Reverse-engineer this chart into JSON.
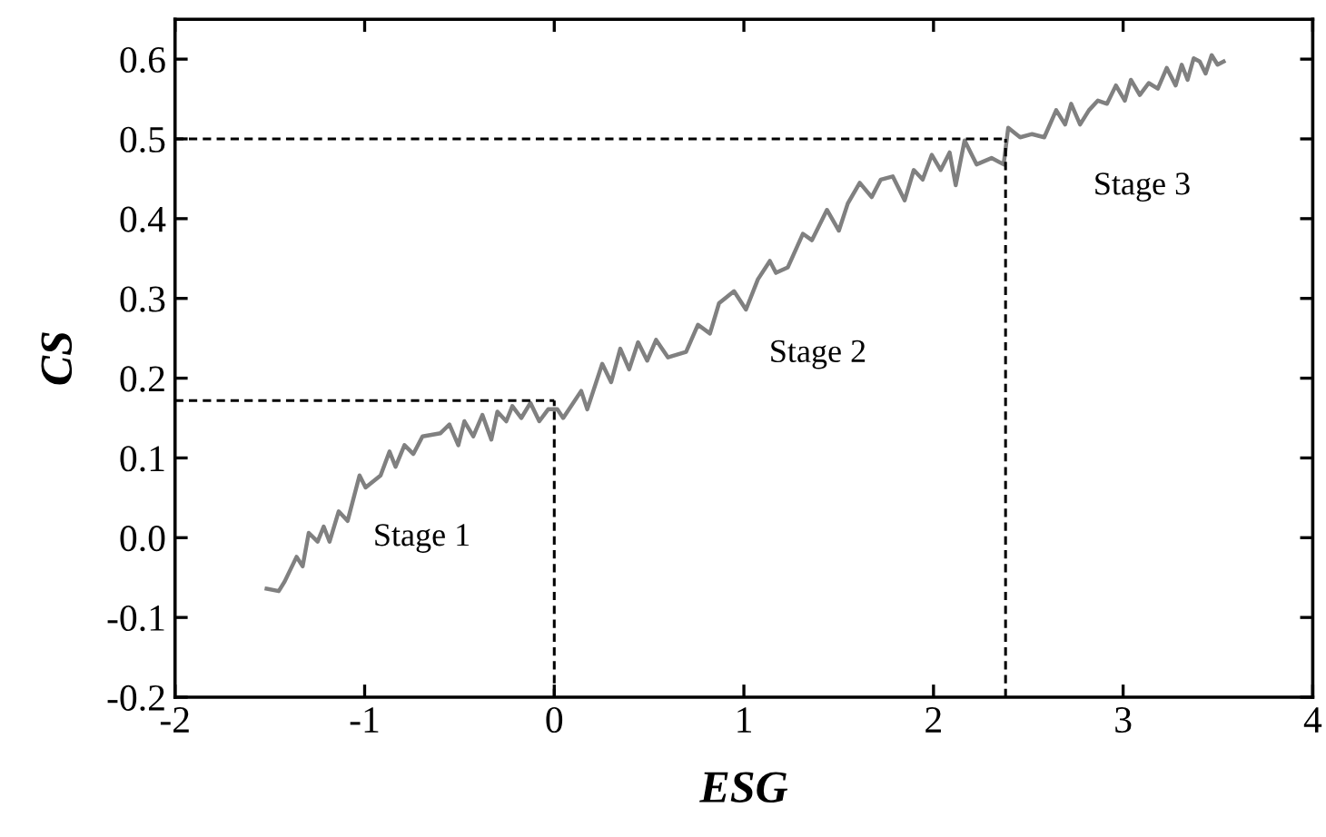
{
  "chart_data": {
    "type": "line",
    "xlabel": "ESG",
    "ylabel": "CS",
    "xlim": [
      -2,
      4
    ],
    "xticks": [
      -2,
      -1,
      0,
      1,
      2,
      3,
      4
    ],
    "ylim": [
      -0.2,
      0.65
    ],
    "yticks": [
      -0.2,
      -0.1,
      {
        "value": 0,
        "label": "0.0"
      },
      0.1,
      0.2,
      0.3,
      0.4,
      0.5,
      0.6
    ],
    "grid": false,
    "legend": false,
    "marker": "none",
    "line_style": "solid",
    "series": [
      {
        "color": "#808080",
        "x": [
          -1.517,
          -1.453,
          -1.422,
          -1.359,
          -1.327,
          -1.295,
          -1.248,
          -1.216,
          -1.185,
          -1.137,
          -1.09,
          -1.027,
          -0.995,
          -0.916,
          -0.869,
          -0.837,
          -0.79,
          -0.743,
          -0.695,
          -0.6,
          -0.553,
          -0.506,
          -0.474,
          -0.427,
          -0.379,
          -0.332,
          -0.3,
          -0.253,
          -0.221,
          -0.174,
          -0.126,
          -0.079,
          -0.032,
          0.016,
          0.047,
          0.142,
          0.174,
          0.253,
          0.3,
          0.348,
          0.395,
          0.442,
          0.49,
          0.537,
          0.6,
          0.695,
          0.758,
          0.821,
          0.869,
          0.948,
          1.011,
          1.074,
          1.137,
          1.169,
          1.232,
          1.311,
          1.359,
          1.438,
          1.501,
          1.548,
          1.611,
          1.674,
          1.722,
          1.785,
          1.848,
          1.896,
          1.943,
          1.991,
          2.038,
          2.085,
          2.117,
          2.164,
          2.227,
          2.306,
          2.37,
          2.394,
          2.457,
          2.52,
          2.584,
          2.647,
          2.694,
          2.726,
          2.773,
          2.82,
          2.867,
          2.915,
          2.962,
          3.009,
          3.041,
          3.088,
          3.135,
          3.183,
          3.23,
          3.277,
          3.309,
          3.34,
          3.372,
          3.404,
          3.435,
          3.467,
          3.498,
          3.53
        ],
        "values": [
          -0.064,
          -0.067,
          -0.055,
          -0.024,
          -0.036,
          0.006,
          -0.005,
          0.014,
          -0.005,
          0.033,
          0.021,
          0.078,
          0.063,
          0.078,
          0.108,
          0.089,
          0.116,
          0.105,
          0.127,
          0.131,
          0.142,
          0.116,
          0.146,
          0.127,
          0.154,
          0.123,
          0.158,
          0.146,
          0.165,
          0.15,
          0.169,
          0.146,
          0.161,
          0.161,
          0.15,
          0.184,
          0.161,
          0.218,
          0.195,
          0.237,
          0.211,
          0.245,
          0.222,
          0.248,
          0.226,
          0.233,
          0.267,
          0.256,
          0.294,
          0.309,
          0.286,
          0.324,
          0.347,
          0.332,
          0.339,
          0.381,
          0.373,
          0.411,
          0.385,
          0.419,
          0.445,
          0.427,
          0.449,
          0.453,
          0.423,
          0.461,
          0.449,
          0.48,
          0.461,
          0.483,
          0.442,
          0.498,
          0.468,
          0.476,
          0.468,
          0.514,
          0.502,
          0.506,
          0.502,
          0.536,
          0.518,
          0.544,
          0.518,
          0.536,
          0.548,
          0.544,
          0.567,
          0.548,
          0.574,
          0.555,
          0.57,
          0.563,
          0.589,
          0.567,
          0.593,
          0.574,
          0.601,
          0.597,
          0.582,
          0.605,
          0.593,
          0.597
        ]
      }
    ],
    "ref_lines": [
      {
        "axis": "y",
        "value": 0.172,
        "color": "#000000",
        "line_style": "dashed"
      },
      {
        "axis": "x",
        "value": 0,
        "color": "#000000",
        "line_style": "dashed"
      },
      {
        "axis": "y",
        "value": 0.5,
        "color": "#000000",
        "line_style": "dashed"
      },
      {
        "axis": "x",
        "value": 2.38,
        "color": "#000000",
        "line_style": "dashed"
      }
    ],
    "annotations": [
      "Stage 1",
      "Stage 2",
      "Stage 3"
    ]
  }
}
